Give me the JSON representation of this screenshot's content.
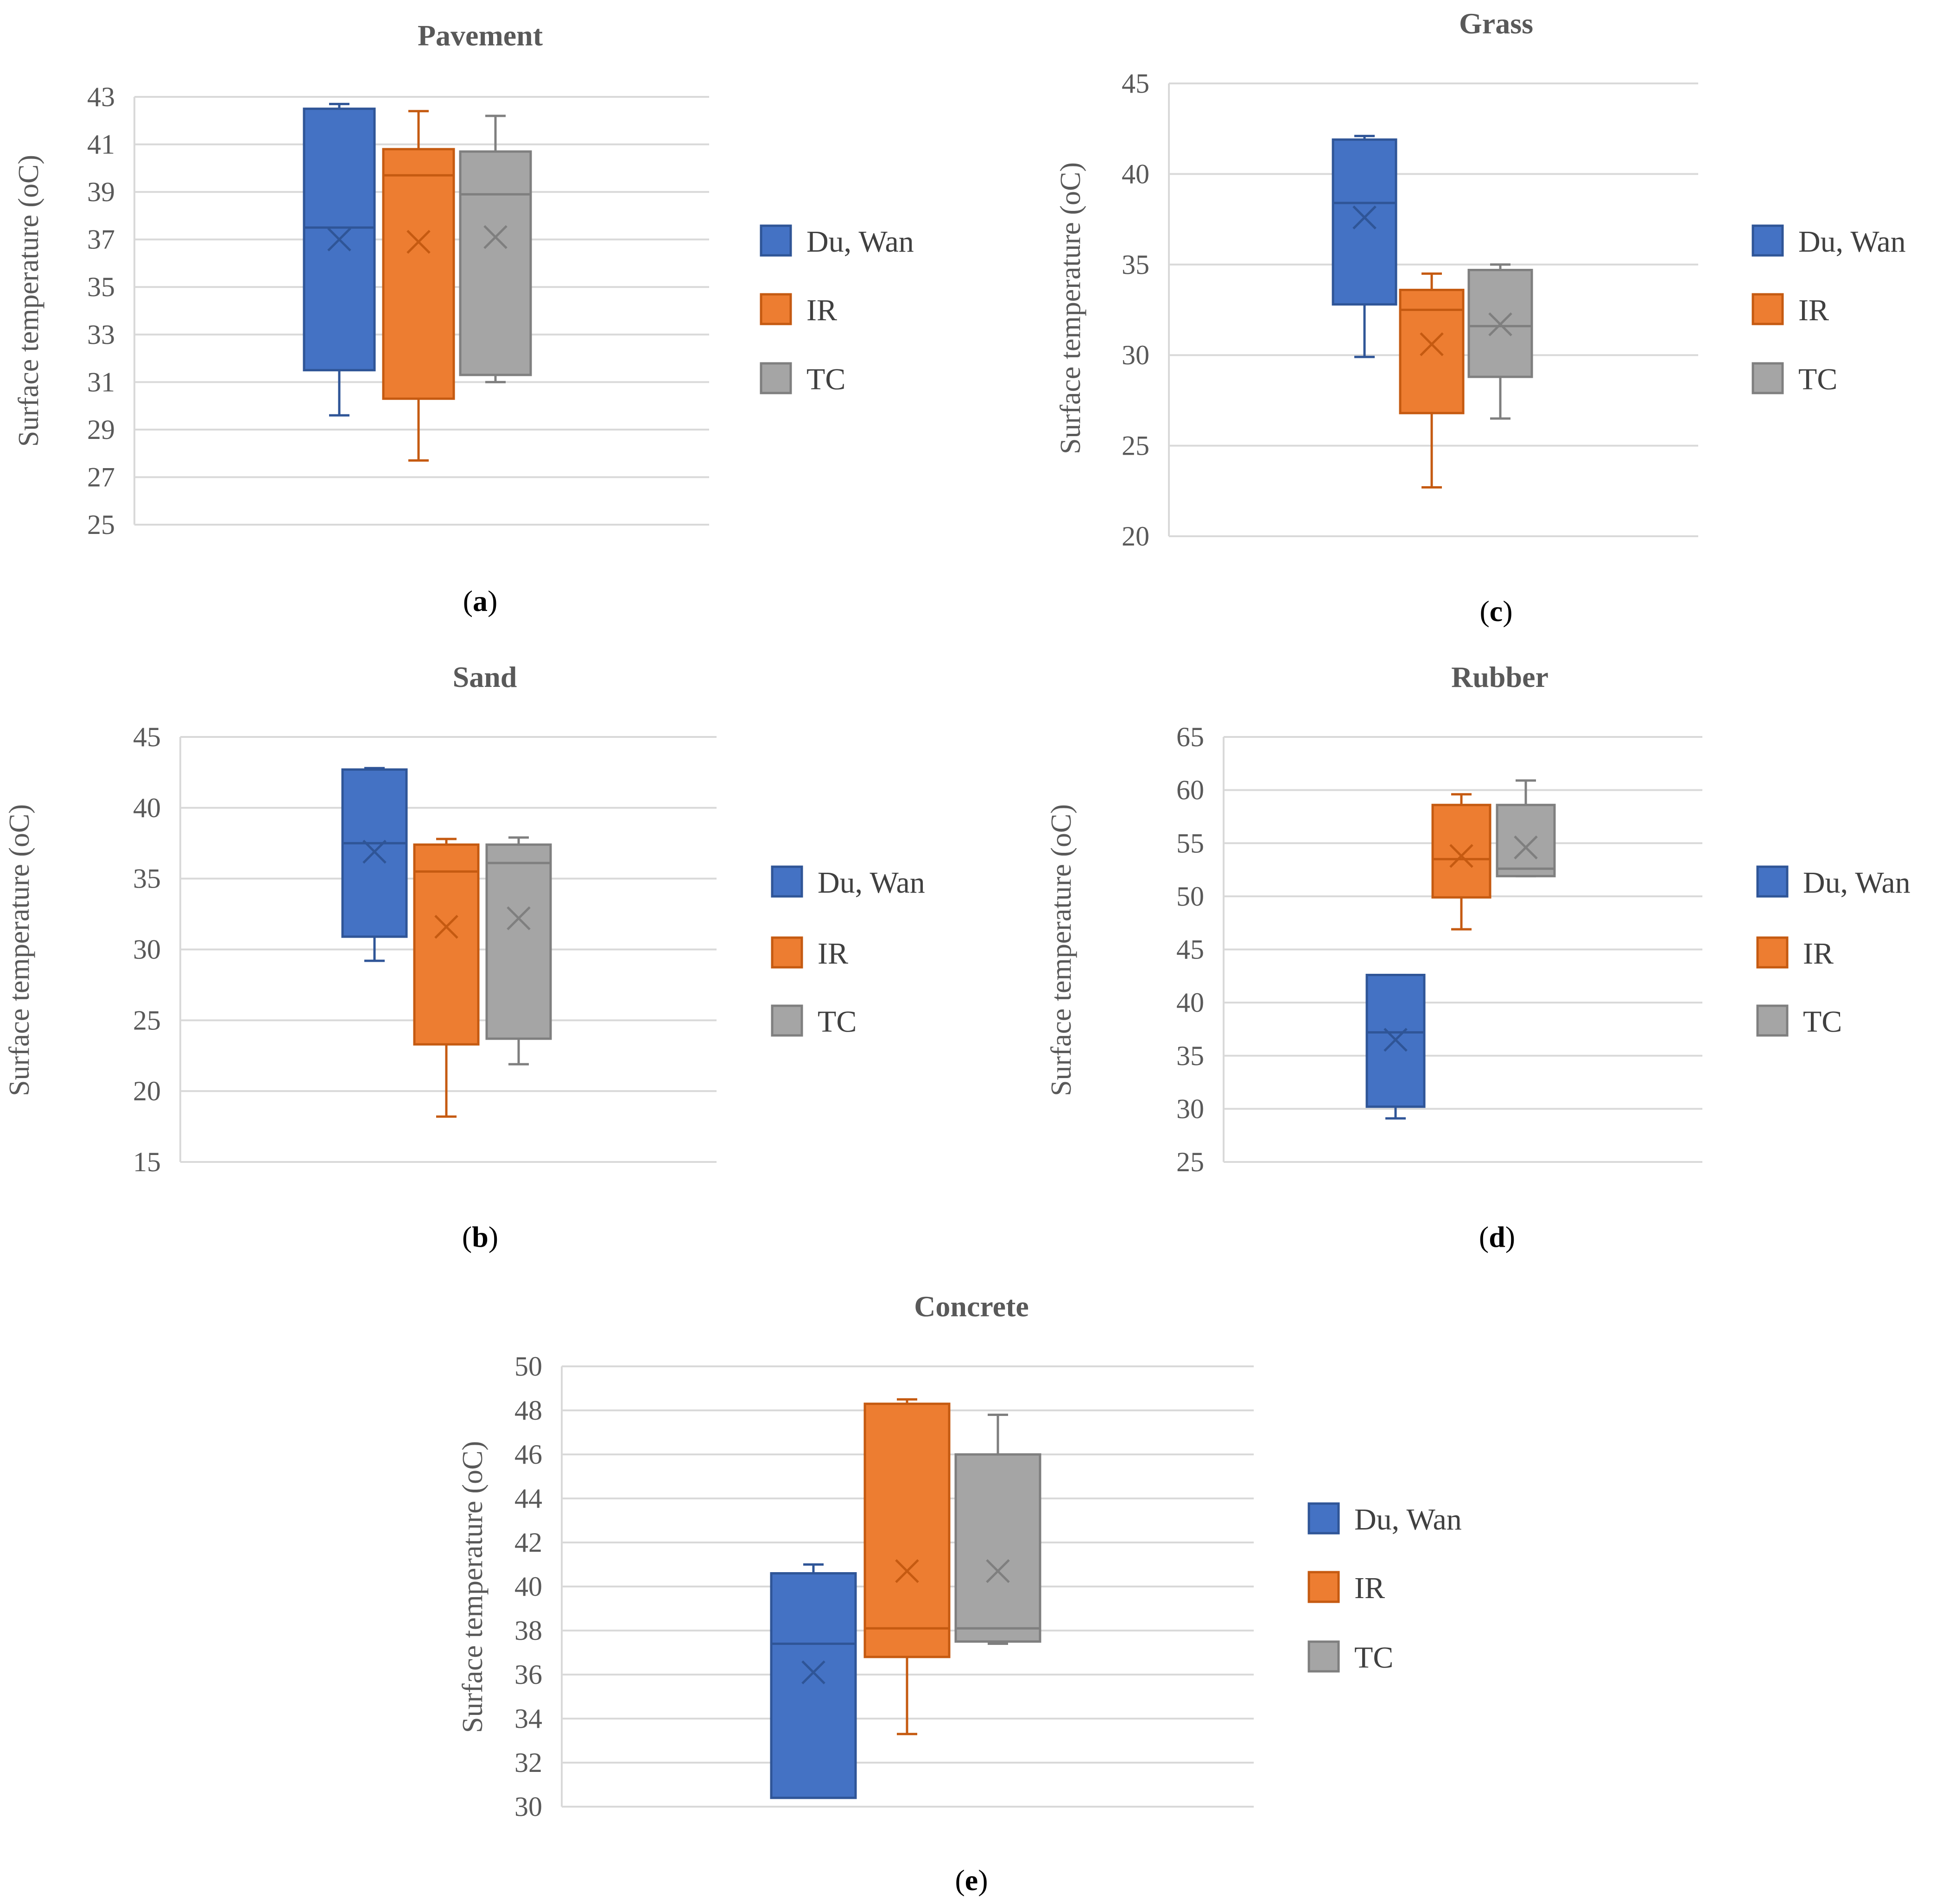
{
  "legend_labels": [
    "Du, Wan",
    "IR",
    "TC"
  ],
  "colors": {
    "Du, Wan": {
      "fill": "#4472c4",
      "stroke": "#2f5597"
    },
    "IR": {
      "fill": "#ed7d31",
      "stroke": "#c55a11"
    },
    "TC": {
      "fill": "#a5a5a5",
      "stroke": "#7f7f7f"
    }
  },
  "chart_data": [
    {
      "panel": "a",
      "type": "box",
      "title": "Pavement",
      "ylabel": "Surface temperature (oC)",
      "ylim": [
        25,
        43
      ],
      "yticks": [
        25,
        27,
        29,
        31,
        33,
        35,
        37,
        39,
        41,
        43
      ],
      "caption": {
        "open": "(",
        "letter": "a",
        "close": ")"
      },
      "series": [
        {
          "name": "Du, Wan",
          "min": 29.6,
          "q1": 31.5,
          "median": 37.5,
          "q3": 42.5,
          "max": 42.7,
          "mean": 37.0
        },
        {
          "name": "IR",
          "min": 27.7,
          "q1": 30.3,
          "median": 39.7,
          "q3": 40.8,
          "max": 42.4,
          "mean": 36.9
        },
        {
          "name": "TC",
          "min": 31.0,
          "q1": 31.3,
          "median": 38.9,
          "q3": 40.7,
          "max": 42.2,
          "mean": 37.1
        }
      ]
    },
    {
      "panel": "c",
      "type": "box",
      "title": "Grass",
      "ylabel": "Surface temperature (oC)",
      "ylim": [
        20,
        45
      ],
      "yticks": [
        20,
        25,
        30,
        35,
        40,
        45
      ],
      "caption": {
        "open": "(",
        "letter": "c",
        "close": ")"
      },
      "series": [
        {
          "name": "Du, Wan",
          "min": 29.9,
          "q1": 32.8,
          "median": 38.4,
          "q3": 41.9,
          "max": 42.1,
          "mean": 37.6
        },
        {
          "name": "IR",
          "min": 22.7,
          "q1": 26.8,
          "median": 32.5,
          "q3": 33.6,
          "max": 34.5,
          "mean": 30.6
        },
        {
          "name": "TC",
          "min": 26.5,
          "q1": 28.8,
          "median": 31.6,
          "q3": 34.7,
          "max": 35.0,
          "mean": 31.7
        }
      ]
    },
    {
      "panel": "b",
      "type": "box",
      "title": "Sand",
      "ylabel": "Surface temperature (oC)",
      "ylim": [
        15,
        45
      ],
      "yticks": [
        15,
        20,
        25,
        30,
        35,
        40,
        45
      ],
      "caption": {
        "open": "(",
        "letter": "b",
        "close": ")"
      },
      "series": [
        {
          "name": "Du, Wan",
          "min": 29.2,
          "q1": 30.9,
          "median": 37.5,
          "q3": 42.7,
          "max": 42.8,
          "mean": 36.9
        },
        {
          "name": "IR",
          "min": 18.2,
          "q1": 23.3,
          "median": 35.5,
          "q3": 37.4,
          "max": 37.8,
          "mean": 31.6
        },
        {
          "name": "TC",
          "min": 21.9,
          "q1": 23.7,
          "median": 36.1,
          "q3": 37.4,
          "max": 37.9,
          "mean": 32.2
        }
      ]
    },
    {
      "panel": "d",
      "type": "box",
      "title": "Rubber",
      "ylabel": "Surface temperature (oC)",
      "ylim": [
        25,
        65
      ],
      "yticks": [
        25,
        30,
        35,
        40,
        45,
        50,
        55,
        60,
        65
      ],
      "caption": {
        "open": "(",
        "letter": "d",
        "close": ")"
      },
      "series": [
        {
          "name": "Du, Wan",
          "min": 29.1,
          "q1": 30.2,
          "median": 37.2,
          "q3": 42.6,
          "max": 42.6,
          "mean": 36.5
        },
        {
          "name": "IR",
          "min": 46.9,
          "q1": 49.9,
          "median": 53.5,
          "q3": 58.6,
          "max": 59.6,
          "mean": 53.8
        },
        {
          "name": "TC",
          "min": 51.9,
          "q1": 51.9,
          "median": 52.6,
          "q3": 58.6,
          "max": 60.9,
          "mean": 54.6
        }
      ]
    },
    {
      "panel": "e",
      "type": "box",
      "title": "Concrete",
      "ylabel": "Surface temperature (oC)",
      "ylim": [
        30,
        50
      ],
      "yticks": [
        30,
        32,
        34,
        36,
        38,
        40,
        42,
        44,
        46,
        48,
        50
      ],
      "caption": {
        "open": "(",
        "letter": "e",
        "close": ")"
      },
      "series": [
        {
          "name": "Du, Wan",
          "min": 30.4,
          "q1": 30.4,
          "median": 37.4,
          "q3": 40.6,
          "max": 41.0,
          "mean": 36.1
        },
        {
          "name": "IR",
          "min": 33.3,
          "q1": 36.8,
          "median": 38.1,
          "q3": 48.3,
          "max": 48.5,
          "mean": 40.7
        },
        {
          "name": "TC",
          "min": 37.4,
          "q1": 37.5,
          "median": 38.1,
          "q3": 46.0,
          "max": 47.8,
          "mean": 40.7
        }
      ]
    }
  ]
}
